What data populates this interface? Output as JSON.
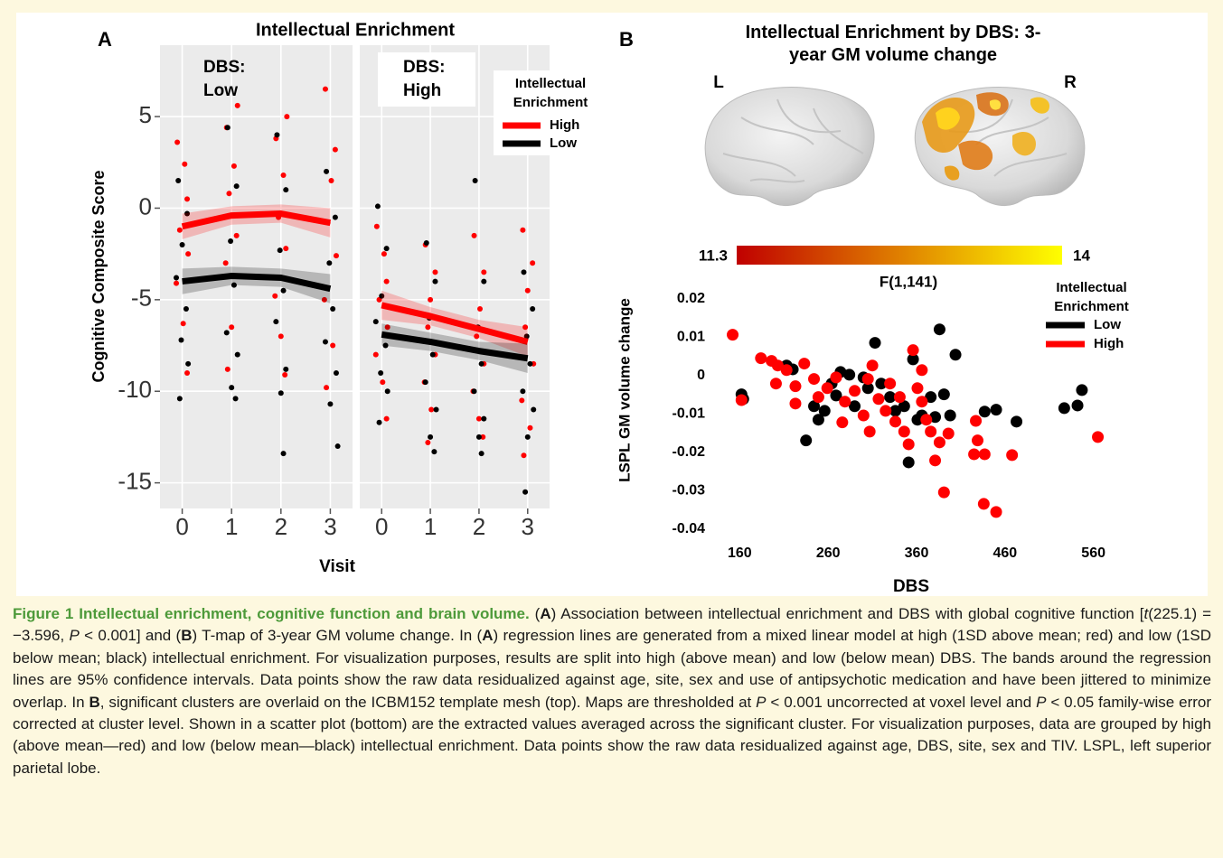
{
  "chart_data": [
    {
      "type": "scatter",
      "panel_label": "A",
      "title": "Intellectual Enrichment",
      "x_label": "Visit",
      "y_label": "Cognitive Composite Score",
      "ylim": [
        -16.4,
        8.9
      ],
      "yticks": [
        -15,
        -10,
        -5,
        0,
        5
      ],
      "xlim": [
        -0.45,
        3.45
      ],
      "xticks": [
        0,
        1,
        2,
        3
      ],
      "grid": true,
      "legend": {
        "title": "Intellectual Enrichment",
        "position": "top-right"
      },
      "groups": [
        {
          "name": "High",
          "color": "#ff0000"
        },
        {
          "name": "Low",
          "color": "#000000"
        }
      ],
      "facets": [
        {
          "label": "DBS: Low",
          "series": [
            {
              "x": [
                -0.1,
                0.05,
                0.1,
                -0.05,
                0.12,
                -0.12,
                0.02,
                0.1,
                0.9,
                1.12,
                1.05,
                0.95,
                1.1,
                0.88,
                1.0,
                0.92,
                1.9,
                2.12,
                2.05,
                1.95,
                2.1,
                1.88,
                2.0,
                2.08,
                2.9,
                3.1,
                3.02,
                2.95,
                3.12,
                2.88,
                3.05,
                2.92
              ],
              "values": [
                3.6,
                2.4,
                0.5,
                -1.2,
                -2.5,
                -4.1,
                -6.3,
                -9.0,
                4.4,
                5.6,
                2.3,
                0.8,
                -1.5,
                -3.0,
                -6.5,
                -8.8,
                3.8,
                5.0,
                1.8,
                -0.5,
                -2.2,
                -4.8,
                -7.0,
                -9.1,
                6.5,
                3.2,
                1.5,
                -0.8,
                -2.6,
                -5.0,
                -7.5,
                -9.8
              ],
              "fit_x": [
                0,
                1,
                2,
                3
              ],
              "fit": [
                -1.0,
                -0.4,
                -0.3,
                -0.8
              ],
              "fit_lower": [
                -1.7,
                -0.9,
                -0.8,
                -1.6
              ],
              "fit_upper": [
                -0.3,
                0.1,
                0.2,
                0.0
              ]
            },
            {
              "x": [
                -0.08,
                0.1,
                0.0,
                -0.12,
                0.08,
                -0.02,
                0.12,
                -0.05,
                0.92,
                1.1,
                0.98,
                1.05,
                0.9,
                1.12,
                1.0,
                1.08,
                1.92,
                2.1,
                1.98,
                2.05,
                1.9,
                2.1,
                2.0,
                2.05,
                2.92,
                3.1,
                2.98,
                3.05,
                2.9,
                3.12,
                3.0,
                3.15
              ],
              "values": [
                1.5,
                -0.3,
                -2.0,
                -3.8,
                -5.5,
                -7.2,
                -8.5,
                -10.4,
                4.4,
                1.2,
                -1.8,
                -4.2,
                -6.8,
                -8.0,
                -9.8,
                -10.4,
                4.0,
                1.0,
                -2.3,
                -4.5,
                -6.2,
                -8.8,
                -10.1,
                -13.4,
                2.0,
                -0.5,
                -3.0,
                -5.5,
                -7.3,
                -9.0,
                -10.7,
                -13.0
              ],
              "fit_x": [
                0,
                1,
                2,
                3
              ],
              "fit": [
                -4.0,
                -3.7,
                -3.8,
                -4.4
              ],
              "fit_lower": [
                -4.7,
                -4.2,
                -4.3,
                -5.2
              ],
              "fit_upper": [
                -3.3,
                -3.2,
                -3.3,
                -3.6
              ]
            }
          ]
        },
        {
          "label": "DBS: High",
          "series": [
            {
              "x": [
                -0.1,
                0.05,
                0.1,
                -0.05,
                0.12,
                -0.12,
                0.02,
                0.1,
                0.9,
                1.1,
                1.0,
                0.95,
                1.1,
                0.88,
                1.02,
                0.95,
                1.9,
                2.1,
                2.02,
                1.95,
                2.1,
                1.88,
                2.0,
                2.08,
                2.9,
                3.1,
                3.0,
                2.95,
                3.12,
                2.88,
                3.05,
                2.92
              ],
              "values": [
                -1.0,
                -2.5,
                -4.0,
                -5.0,
                -6.5,
                -8.0,
                -9.5,
                -11.5,
                -2.0,
                -3.5,
                -5.0,
                -6.5,
                -8.0,
                -9.5,
                -11.0,
                -12.8,
                -1.5,
                -3.5,
                -5.5,
                -7.0,
                -8.5,
                -10.0,
                -11.5,
                -12.5,
                -1.2,
                -3.0,
                -4.5,
                -6.5,
                -8.5,
                -10.5,
                -12.0,
                -13.5
              ],
              "fit_x": [
                0,
                1,
                2,
                3
              ],
              "fit": [
                -5.3,
                -5.9,
                -6.6,
                -7.3
              ],
              "fit_lower": [
                -6.1,
                -6.4,
                -7.1,
                -8.1
              ],
              "fit_upper": [
                -4.5,
                -5.4,
                -6.1,
                -6.5
              ]
            },
            {
              "x": [
                -0.08,
                0.1,
                0.0,
                -0.12,
                0.08,
                -0.02,
                0.12,
                -0.05,
                0.92,
                1.1,
                0.98,
                1.05,
                0.9,
                1.12,
                1.0,
                1.08,
                1.92,
                2.1,
                1.98,
                2.05,
                1.9,
                2.1,
                2.0,
                2.05,
                2.92,
                3.1,
                2.98,
                3.05,
                2.9,
                3.12,
                3.0,
                2.95
              ],
              "values": [
                0.1,
                -2.2,
                -4.8,
                -6.2,
                -7.5,
                -9.0,
                -10.0,
                -11.7,
                -1.9,
                -4.0,
                -6.0,
                -8.0,
                -9.5,
                -11.0,
                -12.5,
                -13.3,
                1.5,
                -4.0,
                -6.5,
                -8.5,
                -10.0,
                -11.5,
                -12.5,
                -13.4,
                -3.5,
                -5.5,
                -7.0,
                -8.5,
                -10.0,
                -11.0,
                -12.5,
                -15.5
              ],
              "fit_x": [
                0,
                1,
                2,
                3
              ],
              "fit": [
                -6.9,
                -7.3,
                -7.8,
                -8.2
              ],
              "fit_lower": [
                -7.5,
                -7.8,
                -8.3,
                -9.0
              ],
              "fit_upper": [
                -6.3,
                -6.8,
                -7.3,
                -7.4
              ]
            }
          ]
        }
      ]
    },
    {
      "type": "scatter",
      "panel_label": "B",
      "title": "Intellectual Enrichment by DBS: 3-year GM volume change",
      "brain_labels": [
        "L",
        "R"
      ],
      "colorbar": {
        "range": [
          11.3,
          14
        ],
        "label": "F(1,141)",
        "colors": [
          "#c00000",
          "#ffff00"
        ]
      },
      "x_label": "DBS",
      "y_label": "LSPL GM volume change",
      "xlim": [
        130,
        590
      ],
      "xticks": [
        160,
        260,
        360,
        460,
        560
      ],
      "ylim": [
        -0.04,
        0.0225
      ],
      "yticks": [
        0.02,
        0.01,
        0,
        -0.01,
        -0.02,
        -0.03,
        -0.04
      ],
      "grid": false,
      "legend": {
        "title": "Intellectual Enrichment",
        "position": "top-right"
      },
      "series": [
        {
          "name": "Low",
          "color": "#000000",
          "x": [
            162,
            164,
            213,
            220,
            235,
            244,
            249,
            256,
            264,
            269,
            274,
            284,
            290,
            300,
            305,
            313,
            320,
            330,
            336,
            346,
            351,
            356,
            361,
            366,
            376,
            381,
            386,
            391,
            398,
            404,
            437,
            450,
            473,
            527,
            542,
            547
          ],
          "values": [
            -0.0049,
            -0.0061,
            0.0026,
            0.0016,
            -0.0169,
            -0.008,
            -0.0115,
            -0.0092,
            -0.0021,
            -0.0052,
            0.0009,
            0.0002,
            -0.008,
            -0.0005,
            -0.0033,
            0.0085,
            -0.0021,
            -0.0056,
            -0.0092,
            -0.008,
            -0.0226,
            0.0042,
            -0.0115,
            -0.0104,
            -0.0056,
            -0.0108,
            0.012,
            -0.0049,
            -0.0104,
            0.0054,
            -0.0094,
            -0.0089,
            -0.012,
            -0.0085,
            -0.0078,
            -0.0038
          ]
        },
        {
          "name": "High",
          "color": "#ff0000",
          "x": [
            152,
            162,
            184,
            196,
            203,
            213,
            201,
            223,
            233,
            244,
            223,
            249,
            259,
            269,
            276,
            279,
            290,
            300,
            305,
            310,
            317,
            325,
            330,
            336,
            341,
            346,
            351,
            356,
            361,
            366,
            371,
            376,
            381,
            386,
            391,
            396,
            366,
            307,
            425,
            427,
            429,
            437,
            436,
            450,
            468,
            565
          ],
          "values": [
            0.0106,
            -0.0064,
            0.0045,
            0.0038,
            0.0026,
            0.0014,
            -0.0021,
            -0.0028,
            0.0031,
            -0.0009,
            -0.0073,
            -0.0056,
            -0.0033,
            -0.0005,
            -0.0122,
            -0.0068,
            -0.004,
            -0.0104,
            -0.0009,
            0.0026,
            -0.0061,
            -0.0092,
            -0.0021,
            -0.012,
            -0.0056,
            -0.0146,
            -0.0179,
            0.0066,
            -0.0033,
            -0.0068,
            -0.0115,
            -0.0146,
            -0.0221,
            -0.0174,
            -0.0304,
            -0.0151,
            0.0014,
            -0.0146,
            -0.0205,
            -0.0118,
            -0.0169,
            -0.0205,
            -0.0334,
            -0.0355,
            -0.0207,
            -0.016
          ]
        }
      ]
    }
  ],
  "caption": {
    "label": "Figure 1",
    "title": "Intellectual enrichment, cognitive function and brain volume.",
    "body": [
      "(",
      {
        "text": "A",
        "style": "bold"
      },
      ") Association between intellectual enrichment and DBS with global cognitive function [",
      {
        "text": "t",
        "style": "italic"
      },
      "(225.1) = −3.596, ",
      {
        "text": "P",
        "style": "italic"
      },
      " < 0.001] and (",
      {
        "text": "B",
        "style": "bold"
      },
      ") T-map of 3-year GM volume change. In (",
      {
        "text": "A",
        "style": "bold"
      },
      ") regression lines are generated from a mixed linear model at high (1SD above mean; red) and low (1SD below mean; black) intellectual enrichment. For visualization purposes, results are split into high (above mean) and low (below mean) DBS. The bands around the regression lines are 95% confidence intervals. Data points show the raw data residualized against age, site, sex and use of antipsychotic medication and have been jittered to minimize overlap. In ",
      {
        "text": "B",
        "style": "bold"
      },
      ", significant clusters are overlaid on the ICBM152 template mesh (top). Maps are thresholded at ",
      {
        "text": "P",
        "style": "italic"
      },
      " < 0.001 uncorrected at voxel level and ",
      {
        "text": "P",
        "style": "italic"
      },
      " < 0.05 family-wise error corrected at cluster level. Shown in a scatter plot (bottom) are the extracted values averaged across the significant cluster. For visualization purposes, data are grouped by high (above mean—red) and low (below mean—black) intellectual enrichment. Data points show the raw data residualized against age, DBS, site, sex and TIV. LSPL, left superior parietal lobe."
    ]
  }
}
